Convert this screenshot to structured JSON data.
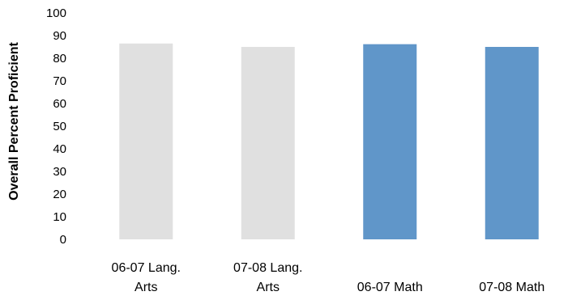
{
  "chart_data": {
    "type": "bar",
    "categories": [
      [
        "06-07 Lang.",
        "Arts"
      ],
      [
        "07-08 Lang.",
        "Arts"
      ],
      [
        "06-07 Math"
      ],
      [
        "07-08 Math"
      ]
    ],
    "values": [
      86.5,
      85,
      86.2,
      85
    ],
    "bar_colors": [
      "#e0e0e0",
      "#e0e0e0",
      "#6096c9",
      "#6096c9"
    ],
    "title": "",
    "xlabel": "",
    "ylabel": "Overall Percent Proficient",
    "ylim": [
      0,
      100
    ],
    "yticks": [
      "0",
      "10",
      "20",
      "30",
      "40",
      "50",
      "60",
      "70",
      "80",
      "90",
      "100"
    ],
    "grid": false,
    "legend": "none"
  }
}
